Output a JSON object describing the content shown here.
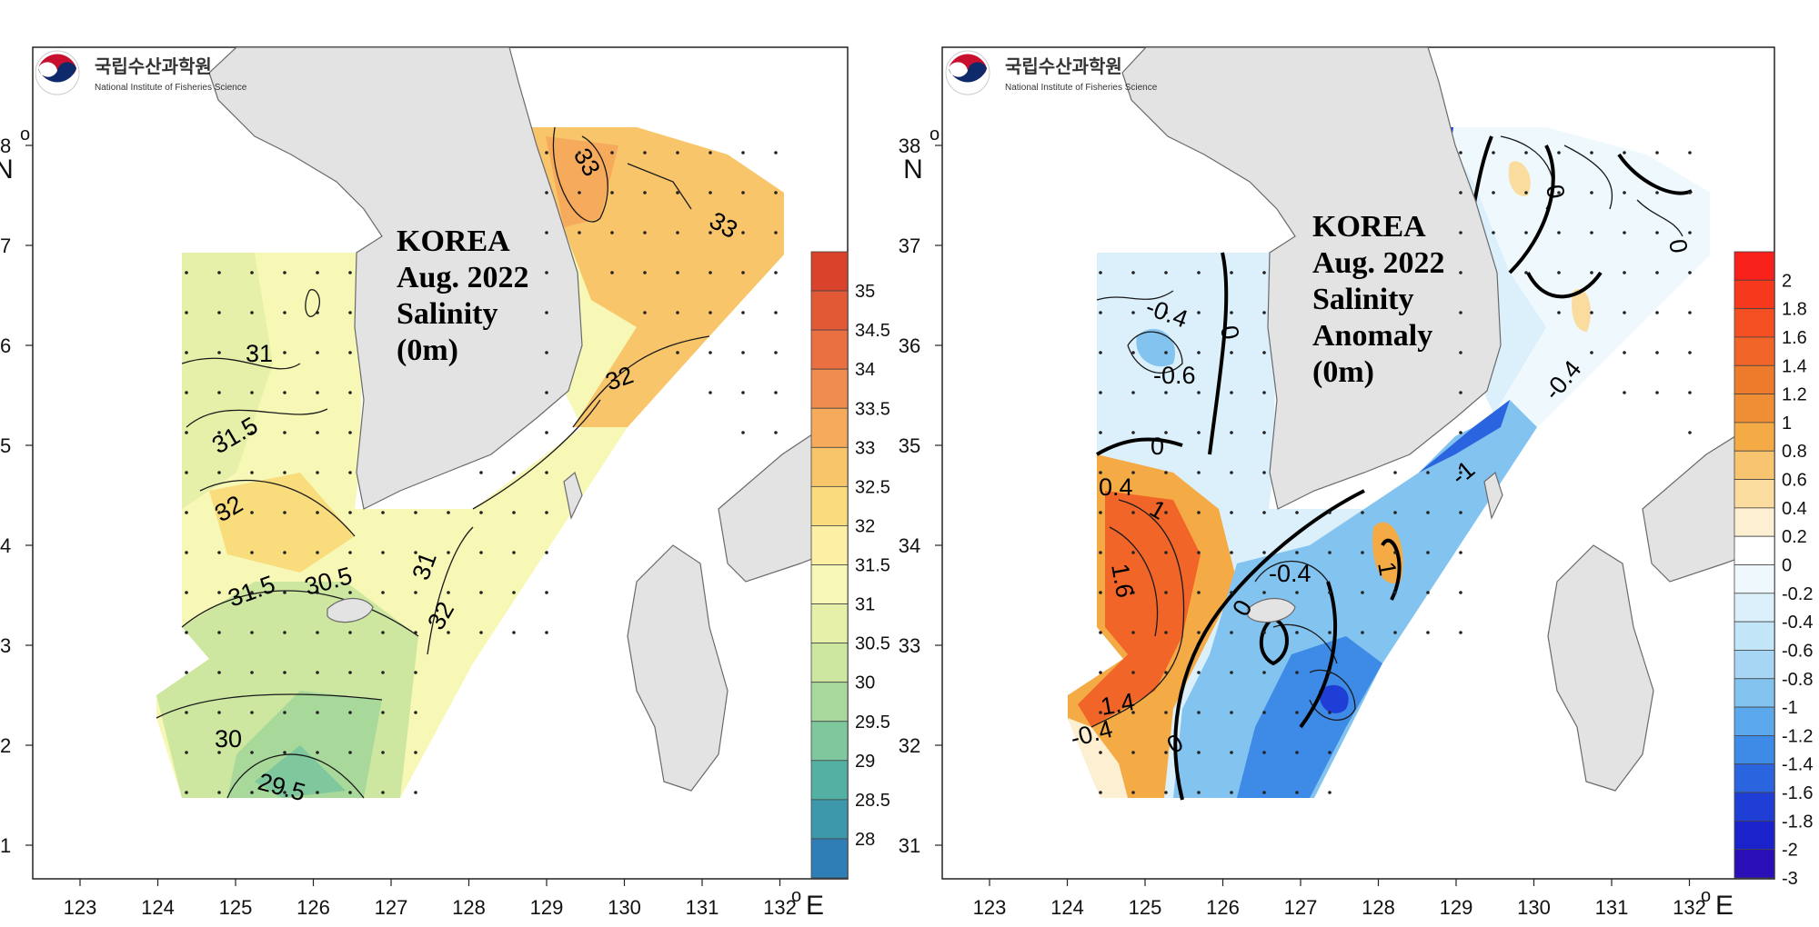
{
  "institute": {
    "name_ko": "국립수산과학원",
    "name_en": "National Institute of Fisheries Science"
  },
  "maps": [
    {
      "id": "salinity",
      "title_lines": [
        "KOREA",
        "Aug. 2022",
        "Salinity",
        "(0m)"
      ],
      "colorbar": {
        "labels": [
          "35",
          "34.5",
          "34",
          "33.5",
          "33",
          "32.5",
          "32",
          "31.5",
          "31",
          "30.5",
          "30",
          "29.5",
          "29",
          "28.5",
          "28"
        ],
        "colors": [
          "#d9432b",
          "#e25a35",
          "#ea7042",
          "#f18c4f",
          "#f6aa5c",
          "#f8c56b",
          "#f9dc7c",
          "#fbf0a3",
          "#f7f8b5",
          "#e6f0a8",
          "#cde7a0",
          "#a9d99a",
          "#7fc79d",
          "#55b0a4",
          "#3d98ab",
          "#2f7fb6"
        ]
      },
      "contour_labels": [
        "33",
        "33",
        "32",
        "31",
        "31.5",
        "32",
        "31.5",
        "30.5",
        "31",
        "32",
        "30",
        "29.5"
      ],
      "land_label": "KOREA"
    },
    {
      "id": "anomaly",
      "title_lines": [
        "KOREA",
        "Aug. 2022",
        "Salinity",
        "Anomaly",
        "(0m)"
      ],
      "colorbar": {
        "labels": [
          "2",
          "1.8",
          "1.6",
          "1.4",
          "1.2",
          "1",
          "0.8",
          "0.6",
          "0.4",
          "0.2",
          "0",
          "-0.2",
          "-0.4",
          "-0.6",
          "-0.8",
          "-1",
          "-1.2",
          "-1.4",
          "-1.6",
          "-1.8",
          "-2",
          "-3"
        ],
        "colors": [
          "#f7201a",
          "#f6391d",
          "#f44f22",
          "#f26528",
          "#ee7a2c",
          "#f08e36",
          "#f5ab45",
          "#f8c470",
          "#fbdc9f",
          "#fdf0d2",
          "#ffffff",
          "#eef8fd",
          "#dbf0fb",
          "#c3e5f8",
          "#a6d6f4",
          "#82c3ef",
          "#5ca8ec",
          "#3d8ae7",
          "#2a64df",
          "#1e3ed6",
          "#1a22cc",
          "#2a0fb8"
        ]
      },
      "contour_labels": [
        "-0.4",
        "-0.6",
        "0",
        "0",
        "0.4",
        "1",
        "1.6",
        "1.4",
        "-0.4",
        "-0.4",
        "1",
        "0",
        "0",
        "0",
        "0",
        "-0.4",
        "-1"
      ]
    }
  ],
  "axes": {
    "lon_ticks": [
      "123",
      "124",
      "125",
      "126",
      "127",
      "128",
      "129",
      "130",
      "131",
      "132"
    ],
    "lat_ticks": [
      "38",
      "37",
      "36",
      "35",
      "34",
      "33",
      "32",
      "31"
    ],
    "lon_unit": "E",
    "lat_unit": "N",
    "degree_symbol": "o"
  }
}
